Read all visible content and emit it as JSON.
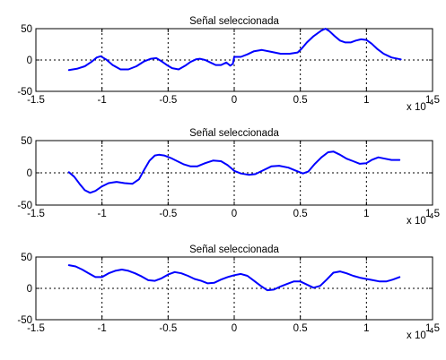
{
  "chart_data": [
    {
      "type": "line",
      "title": "Señal  seleccionada",
      "xlim": [
        -1.5,
        1.5
      ],
      "ylim": [
        -50,
        50
      ],
      "xticks": [
        -1.5,
        -1,
        -0.5,
        0,
        0.5,
        1,
        1.5
      ],
      "yticks": [
        -50,
        0,
        50
      ],
      "xtick_labels": [
        "-1.5",
        "-1",
        "-0.5",
        "0",
        "0.5",
        "1",
        "1.5"
      ],
      "ytick_labels": [
        "-50",
        "0",
        "50"
      ],
      "x_scale_base": "x 10",
      "x_scale_exp": "-4",
      "grid": true,
      "zero_line": true,
      "line_color": "#0000ff",
      "series": [
        {
          "x": [
            -1.25,
            -1.19,
            -1.13,
            -1.08,
            -1.04,
            -1.01,
            -0.97,
            -0.92,
            -0.86,
            -0.8,
            -0.74,
            -0.68,
            -0.63,
            -0.59,
            -0.55,
            -0.51,
            -0.47,
            -0.42,
            -0.37,
            -0.33,
            -0.29,
            -0.26,
            -0.22,
            -0.18,
            -0.14,
            -0.1,
            -0.06,
            -0.03,
            -0.01,
            0.0,
            0.05,
            0.1,
            0.15,
            0.21,
            0.28,
            0.35,
            0.42,
            0.48,
            0.51,
            0.55,
            0.6,
            0.66,
            0.69,
            0.72,
            0.76,
            0.8,
            0.84,
            0.88,
            0.92,
            0.96,
            1.0,
            1.04,
            1.08,
            1.13,
            1.19,
            1.26
          ],
          "y": [
            -16,
            -14,
            -10,
            -3,
            4,
            6,
            1,
            -8,
            -15,
            -15,
            -10,
            -2,
            2,
            3,
            -2,
            -8,
            -13,
            -15,
            -9,
            -3,
            1,
            2,
            0,
            -4,
            -8,
            -8,
            -4,
            -9,
            -6,
            5,
            5,
            9,
            14,
            16,
            13,
            10,
            10,
            12,
            18,
            28,
            38,
            47,
            50,
            46,
            38,
            31,
            28,
            28,
            31,
            33,
            32,
            26,
            18,
            10,
            4,
            1
          ]
        }
      ]
    },
    {
      "type": "line",
      "title": "Señal  seleccionada",
      "xlim": [
        -1.5,
        1.5
      ],
      "ylim": [
        -50,
        50
      ],
      "xticks": [
        -1.5,
        -1,
        -0.5,
        0,
        0.5,
        1,
        1.5
      ],
      "yticks": [
        -50,
        0,
        50
      ],
      "xtick_labels": [
        "-1.5",
        "-1",
        "-0.5",
        "0",
        "0.5",
        "1",
        "1.5"
      ],
      "ytick_labels": [
        "-50",
        "0",
        "50"
      ],
      "x_scale_base": "x 10",
      "x_scale_exp": "-4",
      "grid": true,
      "zero_line": true,
      "line_color": "#0000ff",
      "series": [
        {
          "x": [
            -1.25,
            -1.21,
            -1.17,
            -1.13,
            -1.09,
            -1.05,
            -1.0,
            -0.95,
            -0.89,
            -0.83,
            -0.77,
            -0.72,
            -0.68,
            -0.64,
            -0.6,
            -0.57,
            -0.53,
            -0.48,
            -0.43,
            -0.38,
            -0.33,
            -0.28,
            -0.22,
            -0.16,
            -0.1,
            -0.05,
            -0.01,
            0.0,
            0.05,
            0.11,
            0.16,
            0.22,
            0.28,
            0.34,
            0.41,
            0.47,
            0.52,
            0.56,
            0.61,
            0.66,
            0.71,
            0.75,
            0.8,
            0.85,
            0.9,
            0.95,
            1.0,
            1.04,
            1.09,
            1.14,
            1.19,
            1.25
          ],
          "y": [
            1,
            -6,
            -17,
            -27,
            -31,
            -28,
            -21,
            -16,
            -14,
            -16,
            -17,
            -10,
            5,
            19,
            27,
            28,
            27,
            23,
            18,
            13,
            10,
            10,
            15,
            19,
            18,
            12,
            5,
            3,
            -1,
            -3,
            -2,
            4,
            10,
            11,
            8,
            3,
            -1,
            2,
            14,
            24,
            32,
            33,
            28,
            22,
            18,
            14,
            15,
            20,
            24,
            22,
            20,
            20
          ]
        }
      ]
    },
    {
      "type": "line",
      "title": "Señal  seleccionada",
      "xlim": [
        -1.5,
        1.5
      ],
      "ylim": [
        -50,
        50
      ],
      "xticks": [
        -1.5,
        -1,
        -0.5,
        0,
        0.5,
        1,
        1.5
      ],
      "yticks": [
        -50,
        0,
        50
      ],
      "xtick_labels": [
        "-1.5",
        "-1",
        "-0.5",
        "0",
        "0.5",
        "1",
        "1.5"
      ],
      "ytick_labels": [
        "-50",
        "0",
        "50"
      ],
      "x_scale_base": "x 10",
      "x_scale_exp": "-4",
      "grid": true,
      "zero_line": true,
      "line_color": "#0000ff",
      "series": [
        {
          "x": [
            -1.25,
            -1.2,
            -1.15,
            -1.1,
            -1.05,
            -1.0,
            -0.95,
            -0.9,
            -0.85,
            -0.8,
            -0.75,
            -0.7,
            -0.65,
            -0.6,
            -0.55,
            -0.5,
            -0.45,
            -0.4,
            -0.35,
            -0.3,
            -0.25,
            -0.2,
            -0.15,
            -0.1,
            -0.05,
            0.0,
            0.05,
            0.1,
            0.15,
            0.2,
            0.25,
            0.3,
            0.35,
            0.4,
            0.45,
            0.5,
            0.55,
            0.6,
            0.65,
            0.7,
            0.75,
            0.8,
            0.85,
            0.9,
            0.95,
            1.0,
            1.05,
            1.1,
            1.15,
            1.2,
            1.25
          ],
          "y": [
            37,
            35,
            30,
            24,
            18,
            18,
            24,
            28,
            30,
            28,
            24,
            19,
            13,
            12,
            16,
            22,
            26,
            24,
            20,
            15,
            12,
            8,
            9,
            14,
            18,
            21,
            23,
            20,
            12,
            4,
            -3,
            -2,
            3,
            7,
            11,
            11,
            6,
            1,
            4,
            14,
            25,
            27,
            24,
            20,
            17,
            15,
            13,
            11,
            11,
            14,
            18
          ]
        }
      ]
    }
  ]
}
